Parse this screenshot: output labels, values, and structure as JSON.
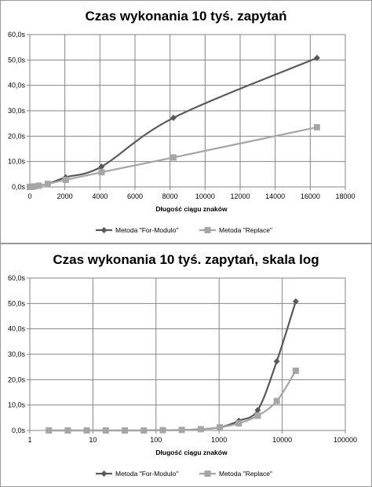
{
  "chart_data": [
    {
      "type": "line",
      "title": "Czas wykonania 10 tyś. zapytań",
      "xlabel": "Długość ciągu znaków",
      "ylabel": "",
      "xscale": "linear",
      "xlim": [
        0,
        18000
      ],
      "ylim": [
        0,
        60
      ],
      "x_ticks": [
        0,
        2000,
        4000,
        6000,
        8000,
        10000,
        12000,
        14000,
        16000,
        18000
      ],
      "x_tick_labels": [
        "0",
        "2000",
        "4000",
        "6000",
        "8000",
        "10000",
        "12000",
        "14000",
        "16000",
        "18000"
      ],
      "y_ticks": [
        0,
        10,
        20,
        30,
        40,
        50,
        60
      ],
      "y_tick_labels": [
        "0,0s",
        "10,0s",
        "20,0s",
        "30,0s",
        "40,0s",
        "50,0s",
        "60,0s"
      ],
      "grid": "major x and y",
      "legend": "bottom",
      "series": [
        {
          "name": "Metoda \"For-Modulo\"",
          "color": "#595959",
          "marker": "diamond",
          "x": [
            2,
            4,
            8,
            16,
            32,
            64,
            128,
            256,
            512,
            1024,
            2048,
            4096,
            8192,
            16384
          ],
          "values": [
            0,
            0,
            0,
            0,
            0,
            0,
            0.1,
            0.2,
            0.5,
            1.2,
            3.8,
            8.0,
            27.2,
            50.8
          ]
        },
        {
          "name": "Metoda \"Replace\"",
          "color": "#a6a6a6",
          "marker": "square",
          "x": [
            2,
            4,
            8,
            16,
            32,
            64,
            128,
            256,
            512,
            1024,
            2048,
            4096,
            8192,
            16384
          ],
          "values": [
            0,
            0,
            0,
            0,
            0,
            0,
            0.1,
            0.2,
            0.5,
            1.2,
            2.8,
            5.8,
            11.6,
            23.5
          ]
        }
      ]
    },
    {
      "type": "line",
      "title": "Czas wykonania 10 tyś. zapytań, skala log",
      "xlabel": "Długość ciągu znaków",
      "ylabel": "",
      "xscale": "log",
      "xlim": [
        1,
        100000
      ],
      "ylim": [
        0,
        60
      ],
      "x_ticks": [
        1,
        10,
        100,
        1000,
        10000,
        100000
      ],
      "x_tick_labels": [
        "1",
        "10",
        "100",
        "1000",
        "10000",
        "100000"
      ],
      "y_ticks": [
        0,
        10,
        20,
        30,
        40,
        50,
        60
      ],
      "y_tick_labels": [
        "0,0s",
        "10,0s",
        "20,0s",
        "30,0s",
        "40,0s",
        "50,0s",
        "60,0s"
      ],
      "grid": "major x and y",
      "legend": "bottom",
      "series": [
        {
          "name": "Metoda \"For-Modulo\"",
          "color": "#595959",
          "marker": "diamond",
          "x": [
            2,
            4,
            8,
            16,
            32,
            64,
            128,
            256,
            512,
            1024,
            2048,
            4096,
            8192,
            16384
          ],
          "values": [
            0,
            0,
            0,
            0,
            0,
            0,
            0.1,
            0.2,
            0.5,
            1.2,
            3.8,
            8.0,
            27.2,
            50.8
          ]
        },
        {
          "name": "Metoda \"Replace\"",
          "color": "#a6a6a6",
          "marker": "square",
          "x": [
            2,
            4,
            8,
            16,
            32,
            64,
            128,
            256,
            512,
            1024,
            2048,
            4096,
            8192,
            16384
          ],
          "values": [
            0,
            0,
            0,
            0,
            0,
            0,
            0.1,
            0.2,
            0.5,
            1.2,
            2.8,
            5.8,
            11.6,
            23.5
          ]
        }
      ]
    }
  ]
}
